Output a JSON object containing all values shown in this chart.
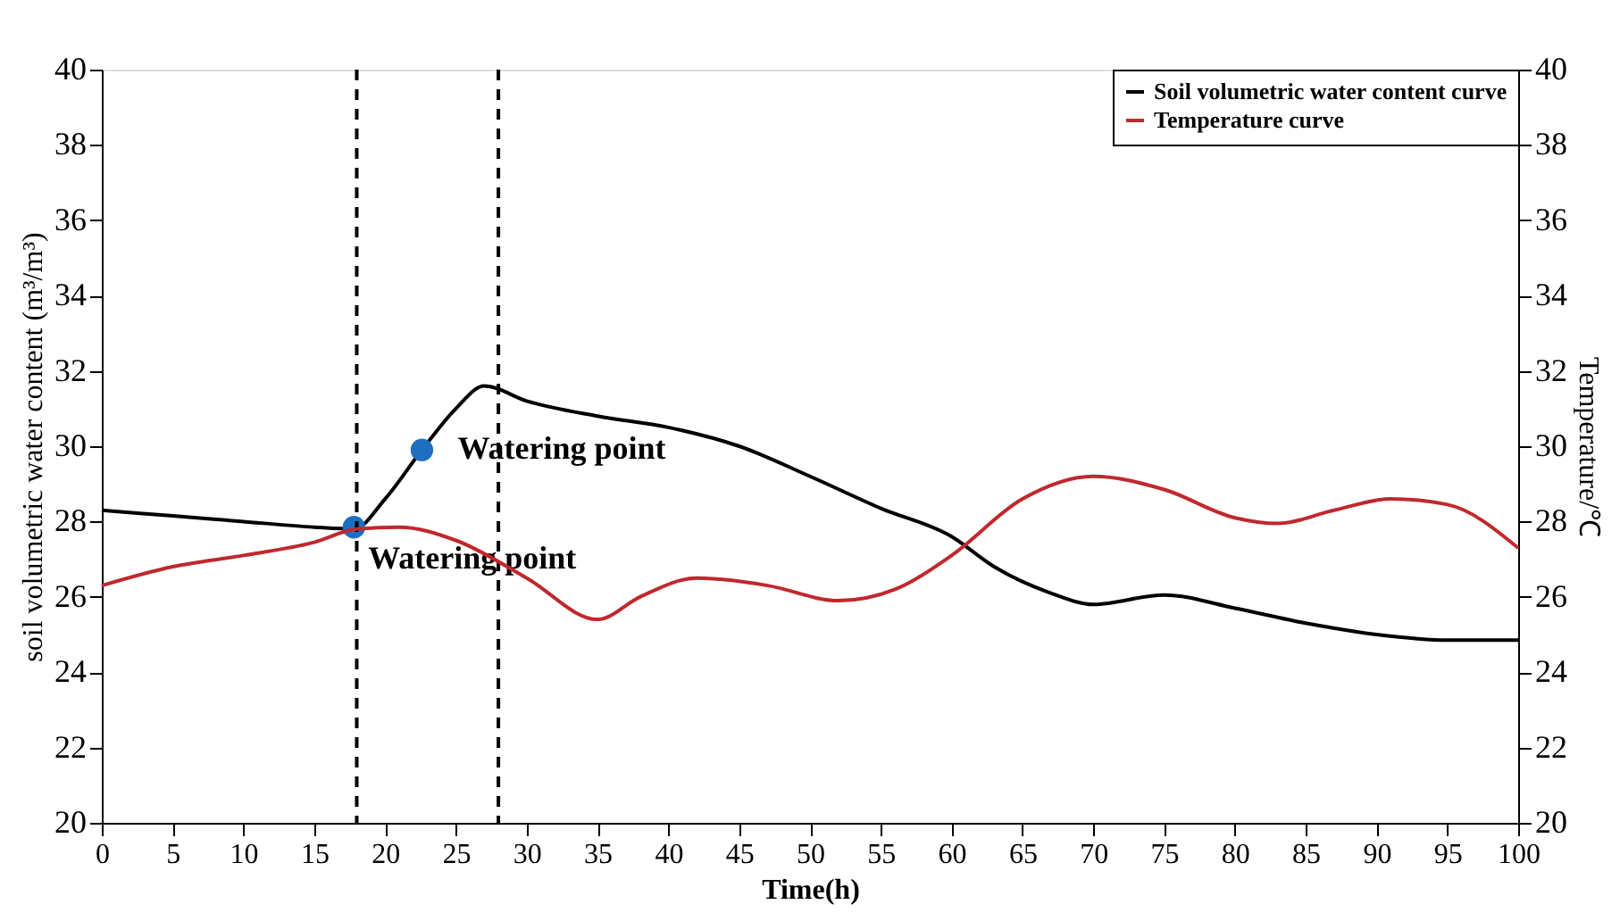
{
  "chart_data": {
    "type": "line",
    "xlabel": "Time(h)",
    "ylabel": "soil volumetric water content (m³/m³)",
    "y2label": "Temperature/℃",
    "xlim": [
      0,
      100
    ],
    "xticks": [
      0,
      5,
      10,
      15,
      20,
      25,
      30,
      35,
      40,
      45,
      50,
      55,
      60,
      65,
      70,
      75,
      80,
      85,
      90,
      95,
      100
    ],
    "ylim": [
      20,
      40
    ],
    "yticks": [
      20,
      22,
      24,
      26,
      28,
      30,
      32,
      34,
      36,
      38,
      40
    ],
    "y2lim": [
      20,
      40
    ],
    "y2ticks": [
      20,
      22,
      24,
      26,
      28,
      30,
      32,
      34,
      36,
      38,
      40
    ],
    "series": [
      {
        "name": "Soil volumetric water content curve",
        "color": "#000000",
        "x": [
          0,
          5,
          10,
          15,
          17.8,
          20,
          22.6,
          25,
          27,
          30,
          35,
          40,
          45,
          50,
          55,
          60,
          63,
          67,
          70,
          75,
          80,
          85,
          90,
          95,
          100
        ],
        "values": [
          28.3,
          28.15,
          28.0,
          27.85,
          27.8,
          28.6,
          29.9,
          31.0,
          31.6,
          31.2,
          30.8,
          30.5,
          30.0,
          29.2,
          28.35,
          27.6,
          26.8,
          26.1,
          25.8,
          26.05,
          25.7,
          25.3,
          25.0,
          24.85,
          24.85
        ]
      },
      {
        "name": "Temperature curve",
        "color": "#c0282d",
        "axis": "y2",
        "x": [
          0,
          5,
          10,
          15,
          18,
          21,
          25,
          30,
          35,
          38,
          42,
          47,
          52,
          56,
          60,
          65,
          70,
          75,
          80,
          83,
          87,
          91,
          95,
          100
        ],
        "values": [
          26.3,
          26.8,
          27.1,
          27.45,
          27.8,
          27.85,
          27.5,
          26.5,
          25.4,
          26.0,
          26.5,
          26.3,
          25.9,
          26.2,
          27.1,
          28.6,
          29.2,
          28.85,
          28.1,
          27.95,
          28.3,
          28.6,
          28.45,
          27.3
        ]
      },
      {
        "type": "scatter",
        "marker": "circle",
        "color": "#1f6fc0",
        "x": [
          17.8,
          22.6
        ],
        "values": [
          27.85,
          29.9
        ]
      }
    ],
    "ref_lines": [
      {
        "axis": "x",
        "value": 18,
        "color": "#000000",
        "line_style": "dashed"
      },
      {
        "axis": "x",
        "value": 28,
        "color": "#000000",
        "line_style": "dashed"
      }
    ],
    "annotations": [
      {
        "text": "Watering point",
        "x": 17.8,
        "y": 27.85
      },
      {
        "text": "Watering point",
        "x": 22.6,
        "y": 29.9
      }
    ],
    "legend": "top right",
    "grid": false,
    "line_style": "solid"
  }
}
